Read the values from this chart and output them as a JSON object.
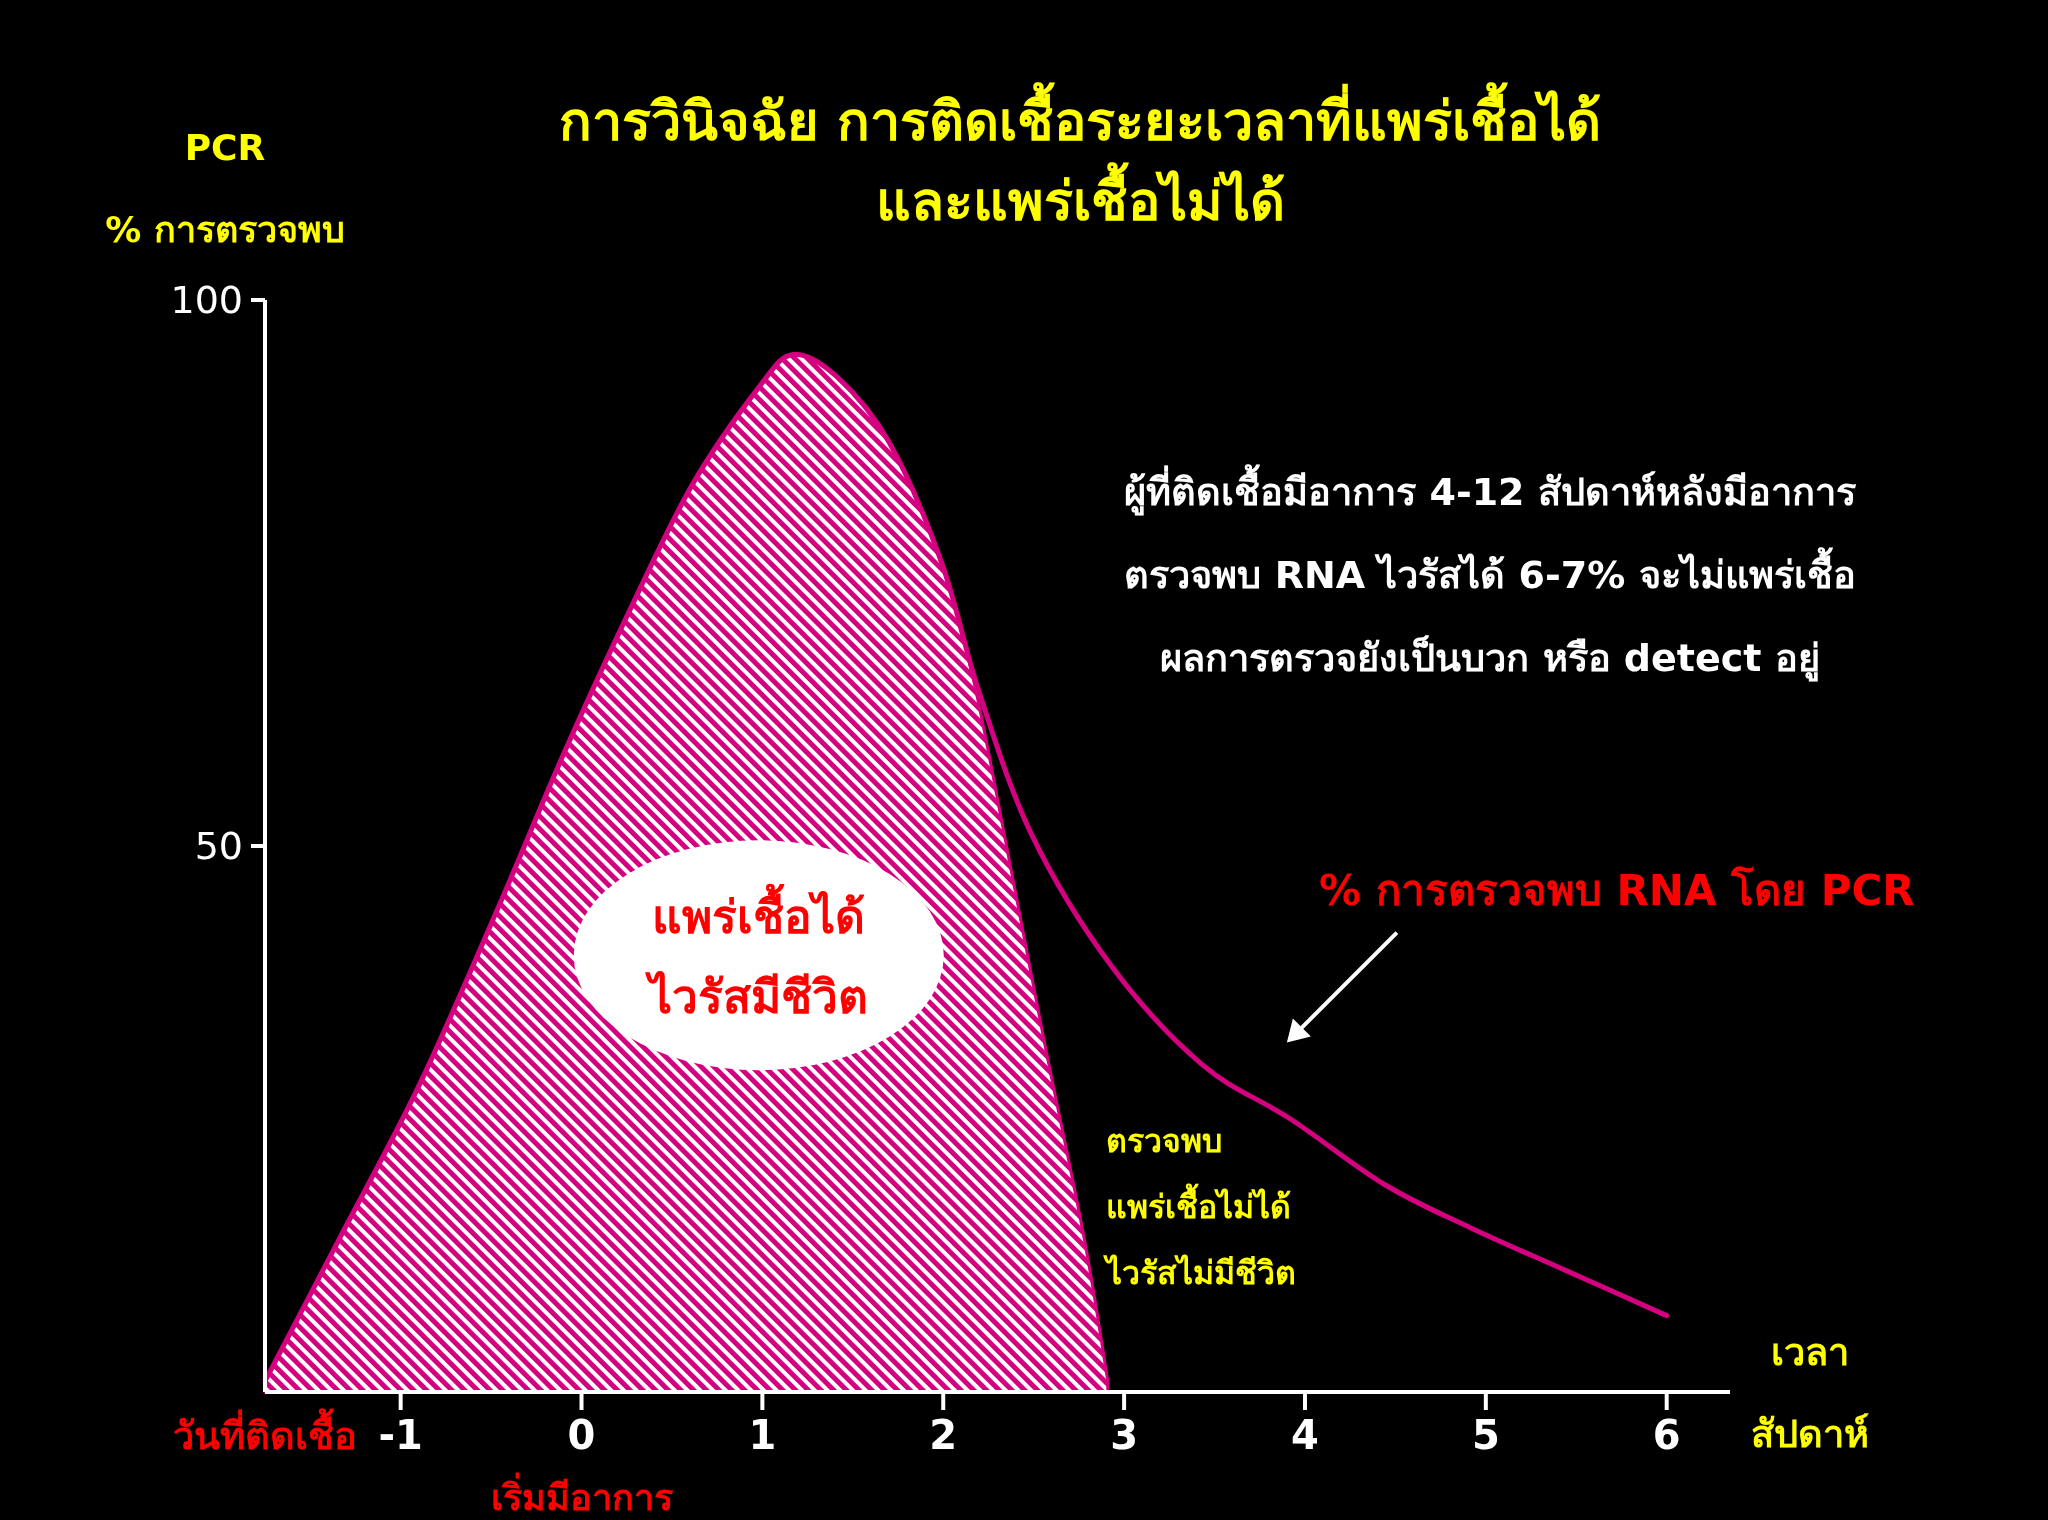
{
  "chart_data": {
    "type": "line",
    "title": "การวินิจฉัย การติดเชื้อระยะเวลาที่แพร่เชื้อได้\nและแพร่เชื้อไม่ได้",
    "ylabel": "PCR\n% การตรวจพบ",
    "xlabel": "เวลา\nสัปดาห์",
    "xlim": [
      -1.75,
      6.35
    ],
    "xticks": [
      -1,
      0,
      1,
      2,
      3,
      4,
      5,
      6
    ],
    "ylim": [
      0,
      100
    ],
    "yticks": [
      50,
      100
    ],
    "series": [
      {
        "type": "area",
        "color": "#d4007f",
        "x": [
          -1.75,
          -1.34,
          -0.9,
          -0.47,
          -0.11,
          0.25,
          0.61,
          0.98,
          1.17,
          1.41,
          1.7,
          1.99,
          2.17,
          2.35,
          2.56,
          2.78,
          2.91
        ],
        "values": [
          1,
          14,
          28,
          44,
          58,
          71,
          83,
          92,
          95,
          93,
          87,
          76,
          65,
          50,
          32,
          14,
          1
        ]
      },
      {
        "type": "line",
        "color": "#d4007f",
        "x": [
          -1.75,
          -1.34,
          -0.9,
          -0.47,
          -0.11,
          0.25,
          0.61,
          0.98,
          1.17,
          1.41,
          1.7,
          1.99,
          2.2,
          2.49,
          2.93,
          3.43,
          3.92,
          4.44,
          4.92,
          5.46,
          6.0
        ],
        "values": [
          1,
          14,
          28,
          44,
          58,
          71,
          83,
          92,
          95,
          93,
          87,
          76,
          64,
          51,
          39,
          30,
          25,
          19,
          15,
          11,
          7
        ]
      }
    ],
    "annotations": [
      "ผู้ที่ติดเชื้อมีอาการ  4-12 สัปดาห์หลังมีอาการ\nตรวจพบ  RNA  ไวรัสได้  6-7% จะไม่แพร่เชื้อ\nผลการตรวจยังเป็นบวก หรือ  detect  อยู่",
      "% การตรวจพบ RNA  โดย  PCR",
      "แพร่เชื้อได้\nไวรัสมีชีวิต",
      "ตรวจพบ\nแพร่เชื้อไม่ได้\nไวรัสไม่มีชีวิต",
      {
        "text": "วันที่ติดเชื้อ",
        "x": -1.75,
        "y": 0
      },
      {
        "text": "เริ่มมีอาการ",
        "x": 0,
        "y": 0
      }
    ]
  }
}
